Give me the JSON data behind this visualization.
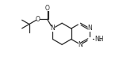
{
  "bg_color": "#ffffff",
  "line_color": "#2a2a2a",
  "lw": 0.9,
  "fs": 5.5,
  "fs2": 4.2,
  "b": 10.5,
  "sx": 55.0,
  "cy_r": 24.5,
  "xlim": [
    2,
    107
  ],
  "ylim": [
    8,
    47
  ]
}
